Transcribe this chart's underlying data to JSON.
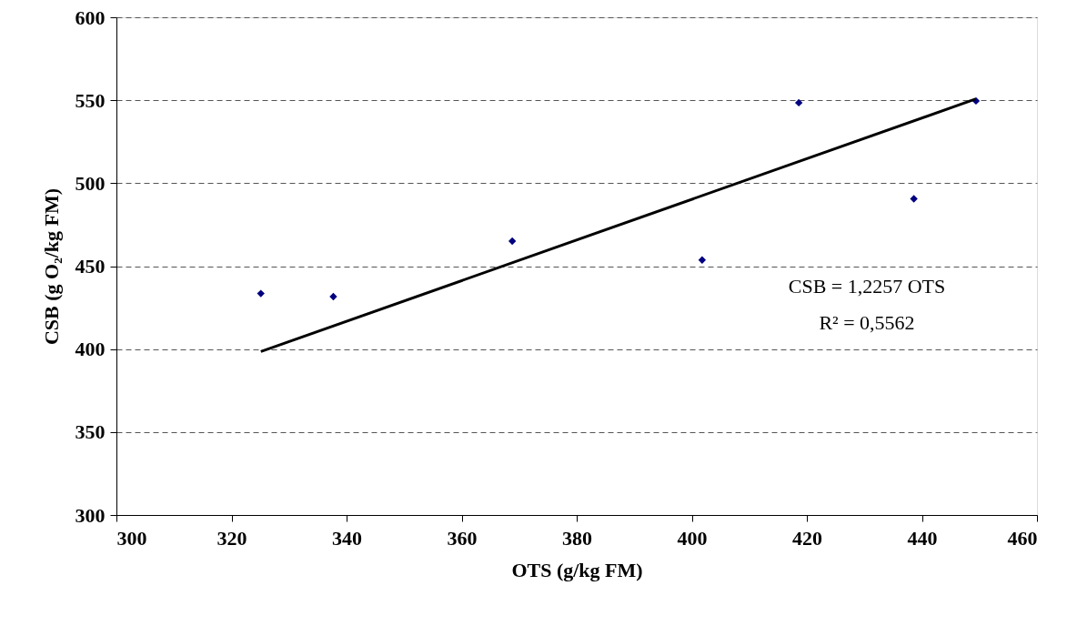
{
  "chart_data": {
    "type": "scatter",
    "xlabel": "OTS (g/kg FM)",
    "ylabel": "CSB (g O₂/kg FM)",
    "xlim": [
      300,
      460
    ],
    "xticks": [
      300,
      320,
      340,
      360,
      380,
      400,
      420,
      440,
      460
    ],
    "ylim": [
      300,
      600
    ],
    "yticks": [
      300,
      350,
      400,
      450,
      500,
      550,
      600
    ],
    "grid": "y",
    "series": [
      {
        "marker": "diamond",
        "color": "#000080",
        "x": [
          325.1,
          337.7,
          368.8,
          401.8,
          418.6,
          438.6,
          449.4
        ],
        "values": [
          433.5,
          431.6,
          465.1,
          453.7,
          548.5,
          490.6,
          549.6
        ]
      },
      {
        "type": "line",
        "marker": "none",
        "color": "#000000",
        "x": [
          325.1,
          449.3
        ],
        "values": [
          398.5,
          550.7
        ]
      }
    ],
    "annotations": [
      "CSB = 1,2257 OTS",
      "R² = 0,5562"
    ]
  }
}
